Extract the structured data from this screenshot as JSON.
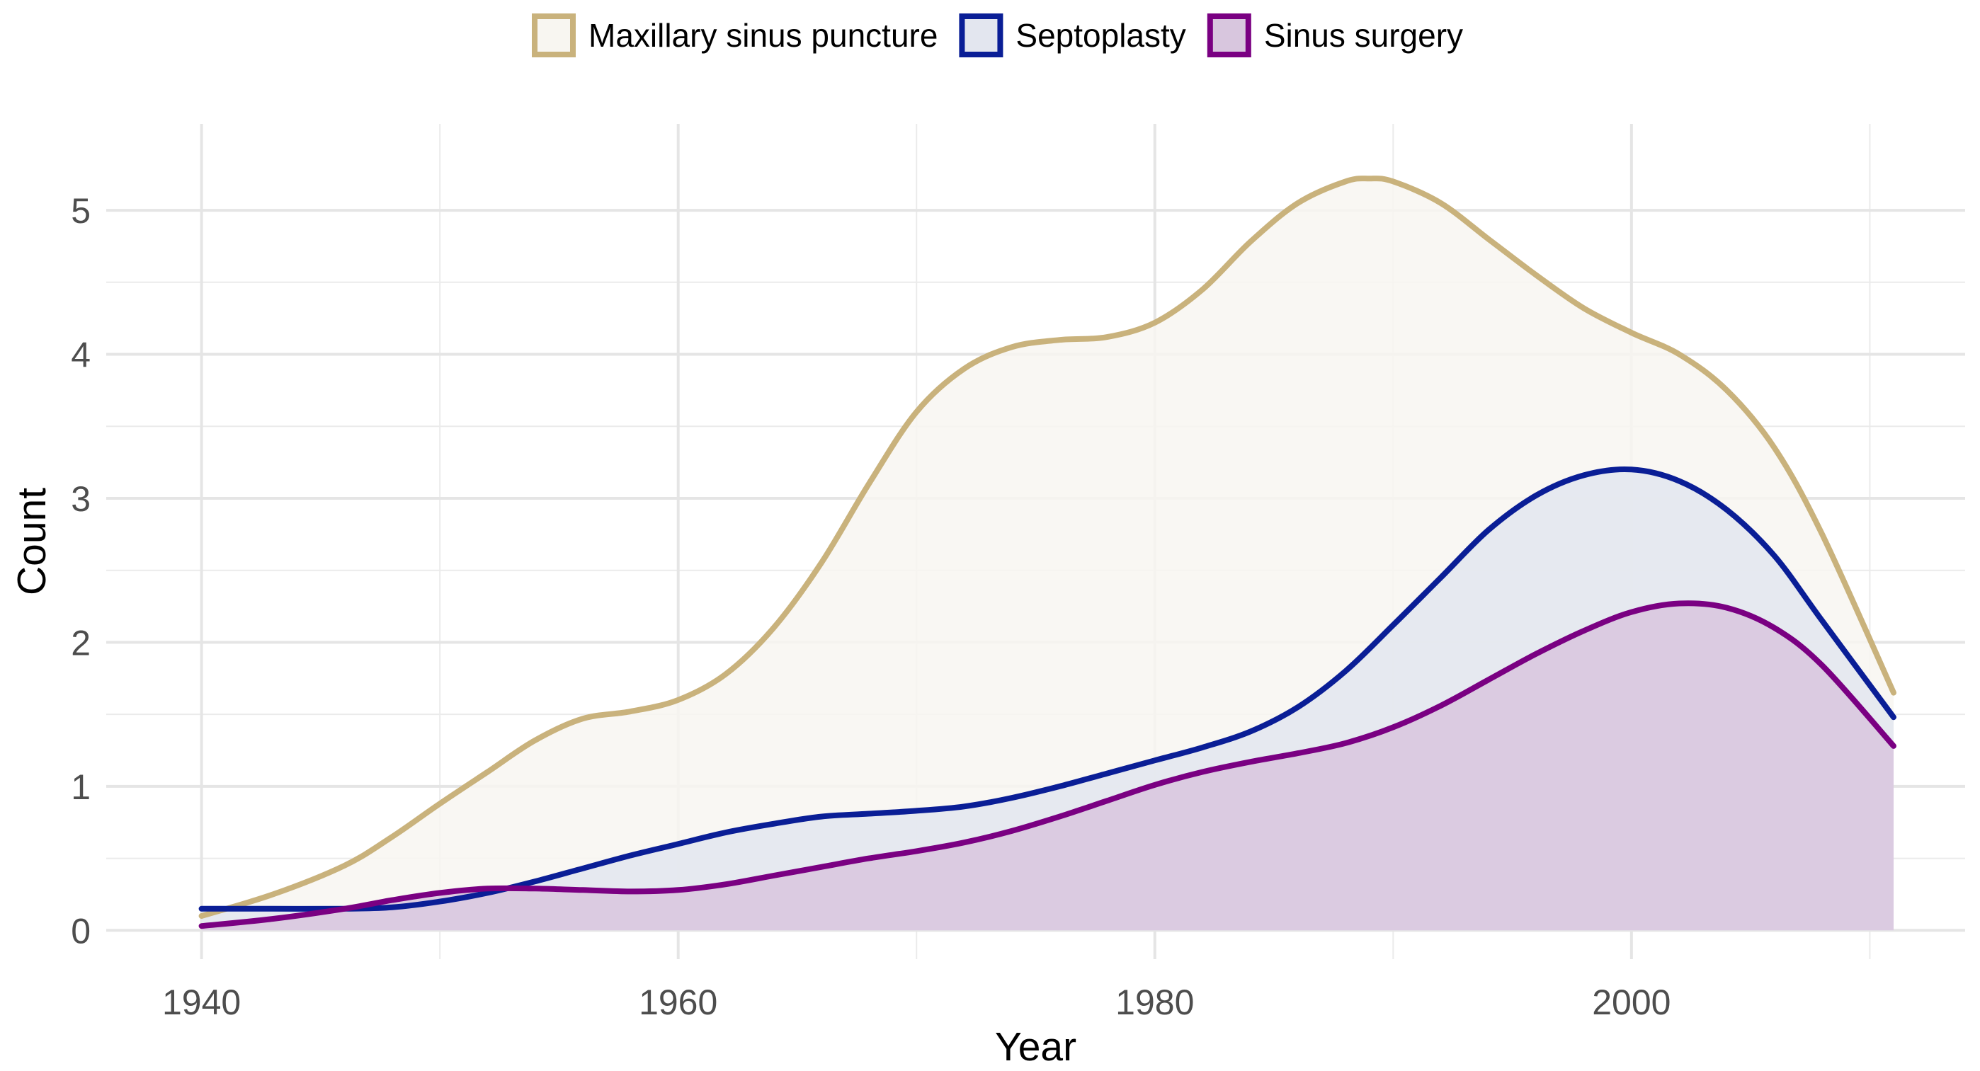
{
  "chart_data": {
    "type": "area",
    "xlabel": "Year",
    "ylabel": "Count",
    "xlim": [
      1936,
      2014
    ],
    "ylim": [
      -0.2,
      5.6
    ],
    "x_ticks": [
      1940,
      1960,
      1980,
      2000
    ],
    "x_minor_ticks": [
      1950,
      1970,
      1990,
      2010
    ],
    "y_ticks": [
      0,
      1,
      2,
      3,
      4,
      5
    ],
    "y_minor_ticks": [
      0.5,
      1.5,
      2.5,
      3.5,
      4.5
    ],
    "grid": true,
    "legend_position": "top",
    "series": [
      {
        "name": "Maxillary sinus puncture",
        "color": "#C9B27C",
        "fill": "#F8F6F1",
        "x": [
          1940,
          1943,
          1946,
          1948,
          1950,
          1952,
          1954,
          1956,
          1958,
          1960,
          1962,
          1964,
          1966,
          1968,
          1970,
          1972,
          1974,
          1976,
          1978,
          1980,
          1982,
          1984,
          1986,
          1988,
          1989,
          1990,
          1992,
          1994,
          1996,
          1998,
          2000,
          2002,
          2004,
          2006,
          2008,
          2011
        ],
        "y": [
          0.1,
          0.25,
          0.45,
          0.65,
          0.88,
          1.1,
          1.32,
          1.47,
          1.52,
          1.6,
          1.78,
          2.1,
          2.55,
          3.1,
          3.6,
          3.9,
          4.05,
          4.1,
          4.12,
          4.22,
          4.45,
          4.78,
          5.05,
          5.2,
          5.22,
          5.2,
          5.05,
          4.8,
          4.55,
          4.32,
          4.15,
          4.0,
          3.75,
          3.35,
          2.75,
          1.65
        ]
      },
      {
        "name": "Septoplasty",
        "color": "#0A1E96",
        "fill": "#E3E6EF",
        "x": [
          1940,
          1943,
          1946,
          1948,
          1950,
          1952,
          1954,
          1956,
          1958,
          1960,
          1962,
          1964,
          1966,
          1968,
          1970,
          1972,
          1974,
          1976,
          1978,
          1980,
          1982,
          1984,
          1986,
          1988,
          1990,
          1992,
          1994,
          1996,
          1998,
          2000,
          2002,
          2004,
          2006,
          2008,
          2011
        ],
        "y": [
          0.15,
          0.15,
          0.15,
          0.16,
          0.2,
          0.26,
          0.34,
          0.43,
          0.52,
          0.6,
          0.68,
          0.74,
          0.79,
          0.81,
          0.83,
          0.86,
          0.92,
          1.0,
          1.09,
          1.18,
          1.27,
          1.38,
          1.55,
          1.8,
          2.12,
          2.45,
          2.78,
          3.02,
          3.16,
          3.2,
          3.12,
          2.92,
          2.6,
          2.15,
          1.48
        ]
      },
      {
        "name": "Sinus surgery",
        "color": "#7A0082",
        "fill": "#D8C6DE",
        "x": [
          1940,
          1943,
          1946,
          1948,
          1950,
          1952,
          1954,
          1956,
          1958,
          1960,
          1962,
          1964,
          1966,
          1968,
          1970,
          1972,
          1974,
          1976,
          1978,
          1980,
          1982,
          1984,
          1986,
          1988,
          1990,
          1992,
          1994,
          1996,
          1998,
          2000,
          2002,
          2004,
          2006,
          2008,
          2011
        ],
        "y": [
          0.03,
          0.08,
          0.15,
          0.21,
          0.26,
          0.29,
          0.29,
          0.28,
          0.27,
          0.28,
          0.32,
          0.38,
          0.44,
          0.5,
          0.55,
          0.61,
          0.69,
          0.79,
          0.9,
          1.01,
          1.1,
          1.17,
          1.23,
          1.3,
          1.41,
          1.56,
          1.74,
          1.92,
          2.08,
          2.21,
          2.27,
          2.24,
          2.1,
          1.84,
          1.28
        ]
      }
    ]
  }
}
